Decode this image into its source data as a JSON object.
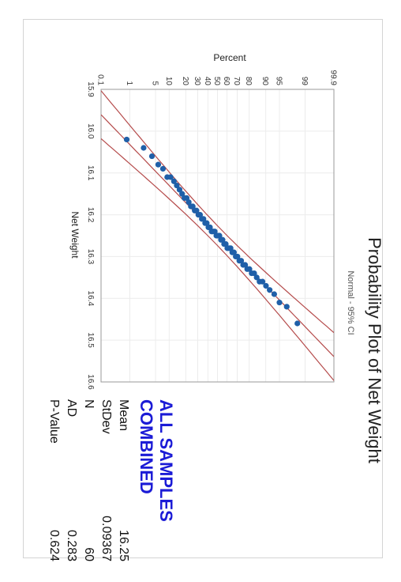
{
  "chart_data": {
    "type": "scatter",
    "title": "Probability Plot of Net Weight",
    "subtitle": "Normal - 95% CI",
    "xlabel": "Net Weight",
    "ylabel": "Percent",
    "xlim": [
      15.9,
      16.6
    ],
    "x_ticks": [
      "15.9",
      "16.0",
      "16.1",
      "16.2",
      "16.3",
      "16.4",
      "16.5",
      "16.6"
    ],
    "y_ticks": [
      "0.1",
      "1",
      "5",
      "10",
      "20",
      "30",
      "40",
      "50",
      "60",
      "70",
      "80",
      "90",
      "95",
      "99",
      "99.9"
    ],
    "y_scale": "normal-probability",
    "points": [
      [
        16.02,
        0.8
      ],
      [
        16.04,
        2.5
      ],
      [
        16.06,
        4.1
      ],
      [
        16.08,
        5.8
      ],
      [
        16.09,
        7.4
      ],
      [
        16.11,
        9.1
      ],
      [
        16.11,
        10.7
      ],
      [
        16.12,
        12.4
      ],
      [
        16.13,
        14.0
      ],
      [
        16.14,
        15.7
      ],
      [
        16.15,
        17.4
      ],
      [
        16.16,
        19.0
      ],
      [
        16.16,
        20.7
      ],
      [
        16.17,
        22.3
      ],
      [
        16.18,
        24.0
      ],
      [
        16.18,
        25.6
      ],
      [
        16.19,
        27.3
      ],
      [
        16.19,
        28.9
      ],
      [
        16.2,
        30.6
      ],
      [
        16.2,
        32.2
      ],
      [
        16.21,
        33.9
      ],
      [
        16.21,
        35.5
      ],
      [
        16.22,
        37.2
      ],
      [
        16.22,
        38.8
      ],
      [
        16.23,
        40.5
      ],
      [
        16.23,
        42.1
      ],
      [
        16.24,
        43.8
      ],
      [
        16.24,
        45.4
      ],
      [
        16.24,
        47.1
      ],
      [
        16.25,
        48.8
      ],
      [
        16.25,
        50.4
      ],
      [
        16.25,
        52.1
      ],
      [
        16.26,
        53.7
      ],
      [
        16.26,
        55.4
      ],
      [
        16.27,
        57.0
      ],
      [
        16.27,
        58.7
      ],
      [
        16.28,
        60.3
      ],
      [
        16.28,
        62.0
      ],
      [
        16.28,
        63.6
      ],
      [
        16.29,
        65.3
      ],
      [
        16.29,
        66.9
      ],
      [
        16.3,
        68.6
      ],
      [
        16.3,
        70.2
      ],
      [
        16.31,
        71.9
      ],
      [
        16.31,
        73.5
      ],
      [
        16.32,
        75.2
      ],
      [
        16.32,
        76.9
      ],
      [
        16.33,
        78.5
      ],
      [
        16.33,
        80.2
      ],
      [
        16.34,
        81.8
      ],
      [
        16.34,
        83.5
      ],
      [
        16.35,
        85.1
      ],
      [
        16.36,
        86.8
      ],
      [
        16.36,
        88.4
      ],
      [
        16.37,
        90.1
      ],
      [
        16.38,
        91.7
      ],
      [
        16.39,
        93.4
      ],
      [
        16.41,
        95.0
      ],
      [
        16.42,
        96.7
      ],
      [
        16.46,
        98.3
      ]
    ],
    "fit_line": {
      "mean": 16.25,
      "stdev": 0.09367
    },
    "ci_level": "95%",
    "grid": true,
    "legend": "none"
  },
  "stats": {
    "group_label": "ALL SAMPLES COMBINED",
    "rows": [
      {
        "label": "Mean",
        "value": "16.25"
      },
      {
        "label": "StDev",
        "value": "0.09367"
      },
      {
        "label": "N",
        "value": "60"
      },
      {
        "label": "AD",
        "value": "0.283"
      },
      {
        "label": "P-Value",
        "value": "0.624"
      }
    ]
  },
  "colors": {
    "points": "#1f5fa8",
    "fit_lines": "#b54b4b",
    "group_label": "#1b1bd6"
  }
}
